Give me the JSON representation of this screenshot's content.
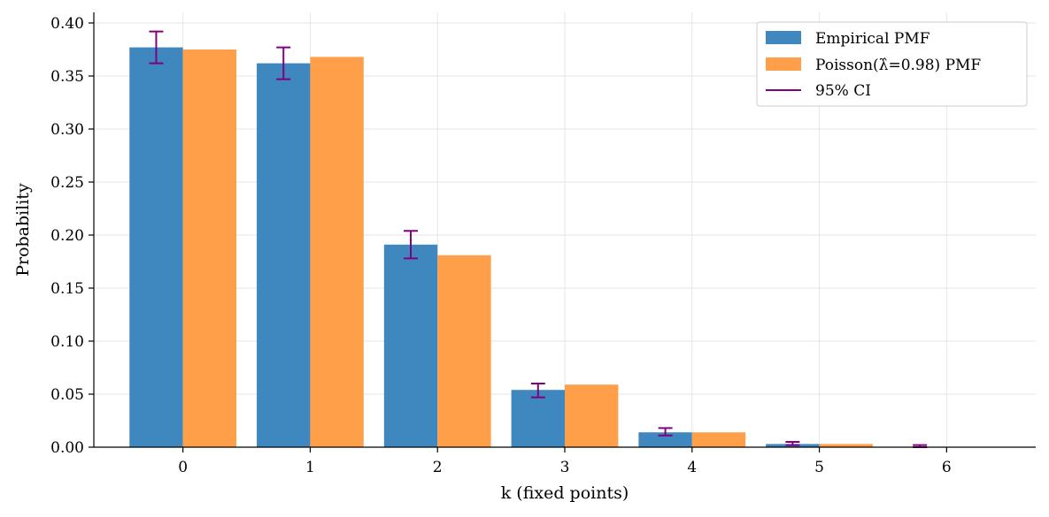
{
  "chart_data": {
    "type": "bar",
    "categories": [
      "0",
      "1",
      "2",
      "3",
      "4",
      "5",
      "6"
    ],
    "series": [
      {
        "name": "Empirical PMF",
        "color": "#3f88bf",
        "values": [
          0.377,
          0.362,
          0.191,
          0.054,
          0.014,
          0.003,
          0.0
        ]
      },
      {
        "name": "Poisson(λ̂=0.98) PMF",
        "color": "#ff9f4a",
        "values": [
          0.375,
          0.368,
          0.181,
          0.059,
          0.014,
          0.003,
          0.0
        ]
      }
    ],
    "error_bars": {
      "name": "95% CI",
      "color": "#800080",
      "lower": [
        0.362,
        0.347,
        0.178,
        0.047,
        0.011,
        0.002,
        0.0
      ],
      "upper": [
        0.392,
        0.377,
        0.204,
        0.06,
        0.018,
        0.005,
        0.002
      ]
    },
    "xlabel": "k (fixed points)",
    "ylabel": "Probability",
    "ylim": [
      0,
      0.41
    ],
    "yticks": [
      0.0,
      0.05,
      0.1,
      0.15,
      0.2,
      0.25,
      0.3,
      0.35,
      0.4
    ],
    "ytick_labels": [
      "0.00",
      "0.05",
      "0.10",
      "0.15",
      "0.20",
      "0.25",
      "0.30",
      "0.35",
      "0.40"
    ],
    "grid": true,
    "legend_position": "top-right"
  }
}
